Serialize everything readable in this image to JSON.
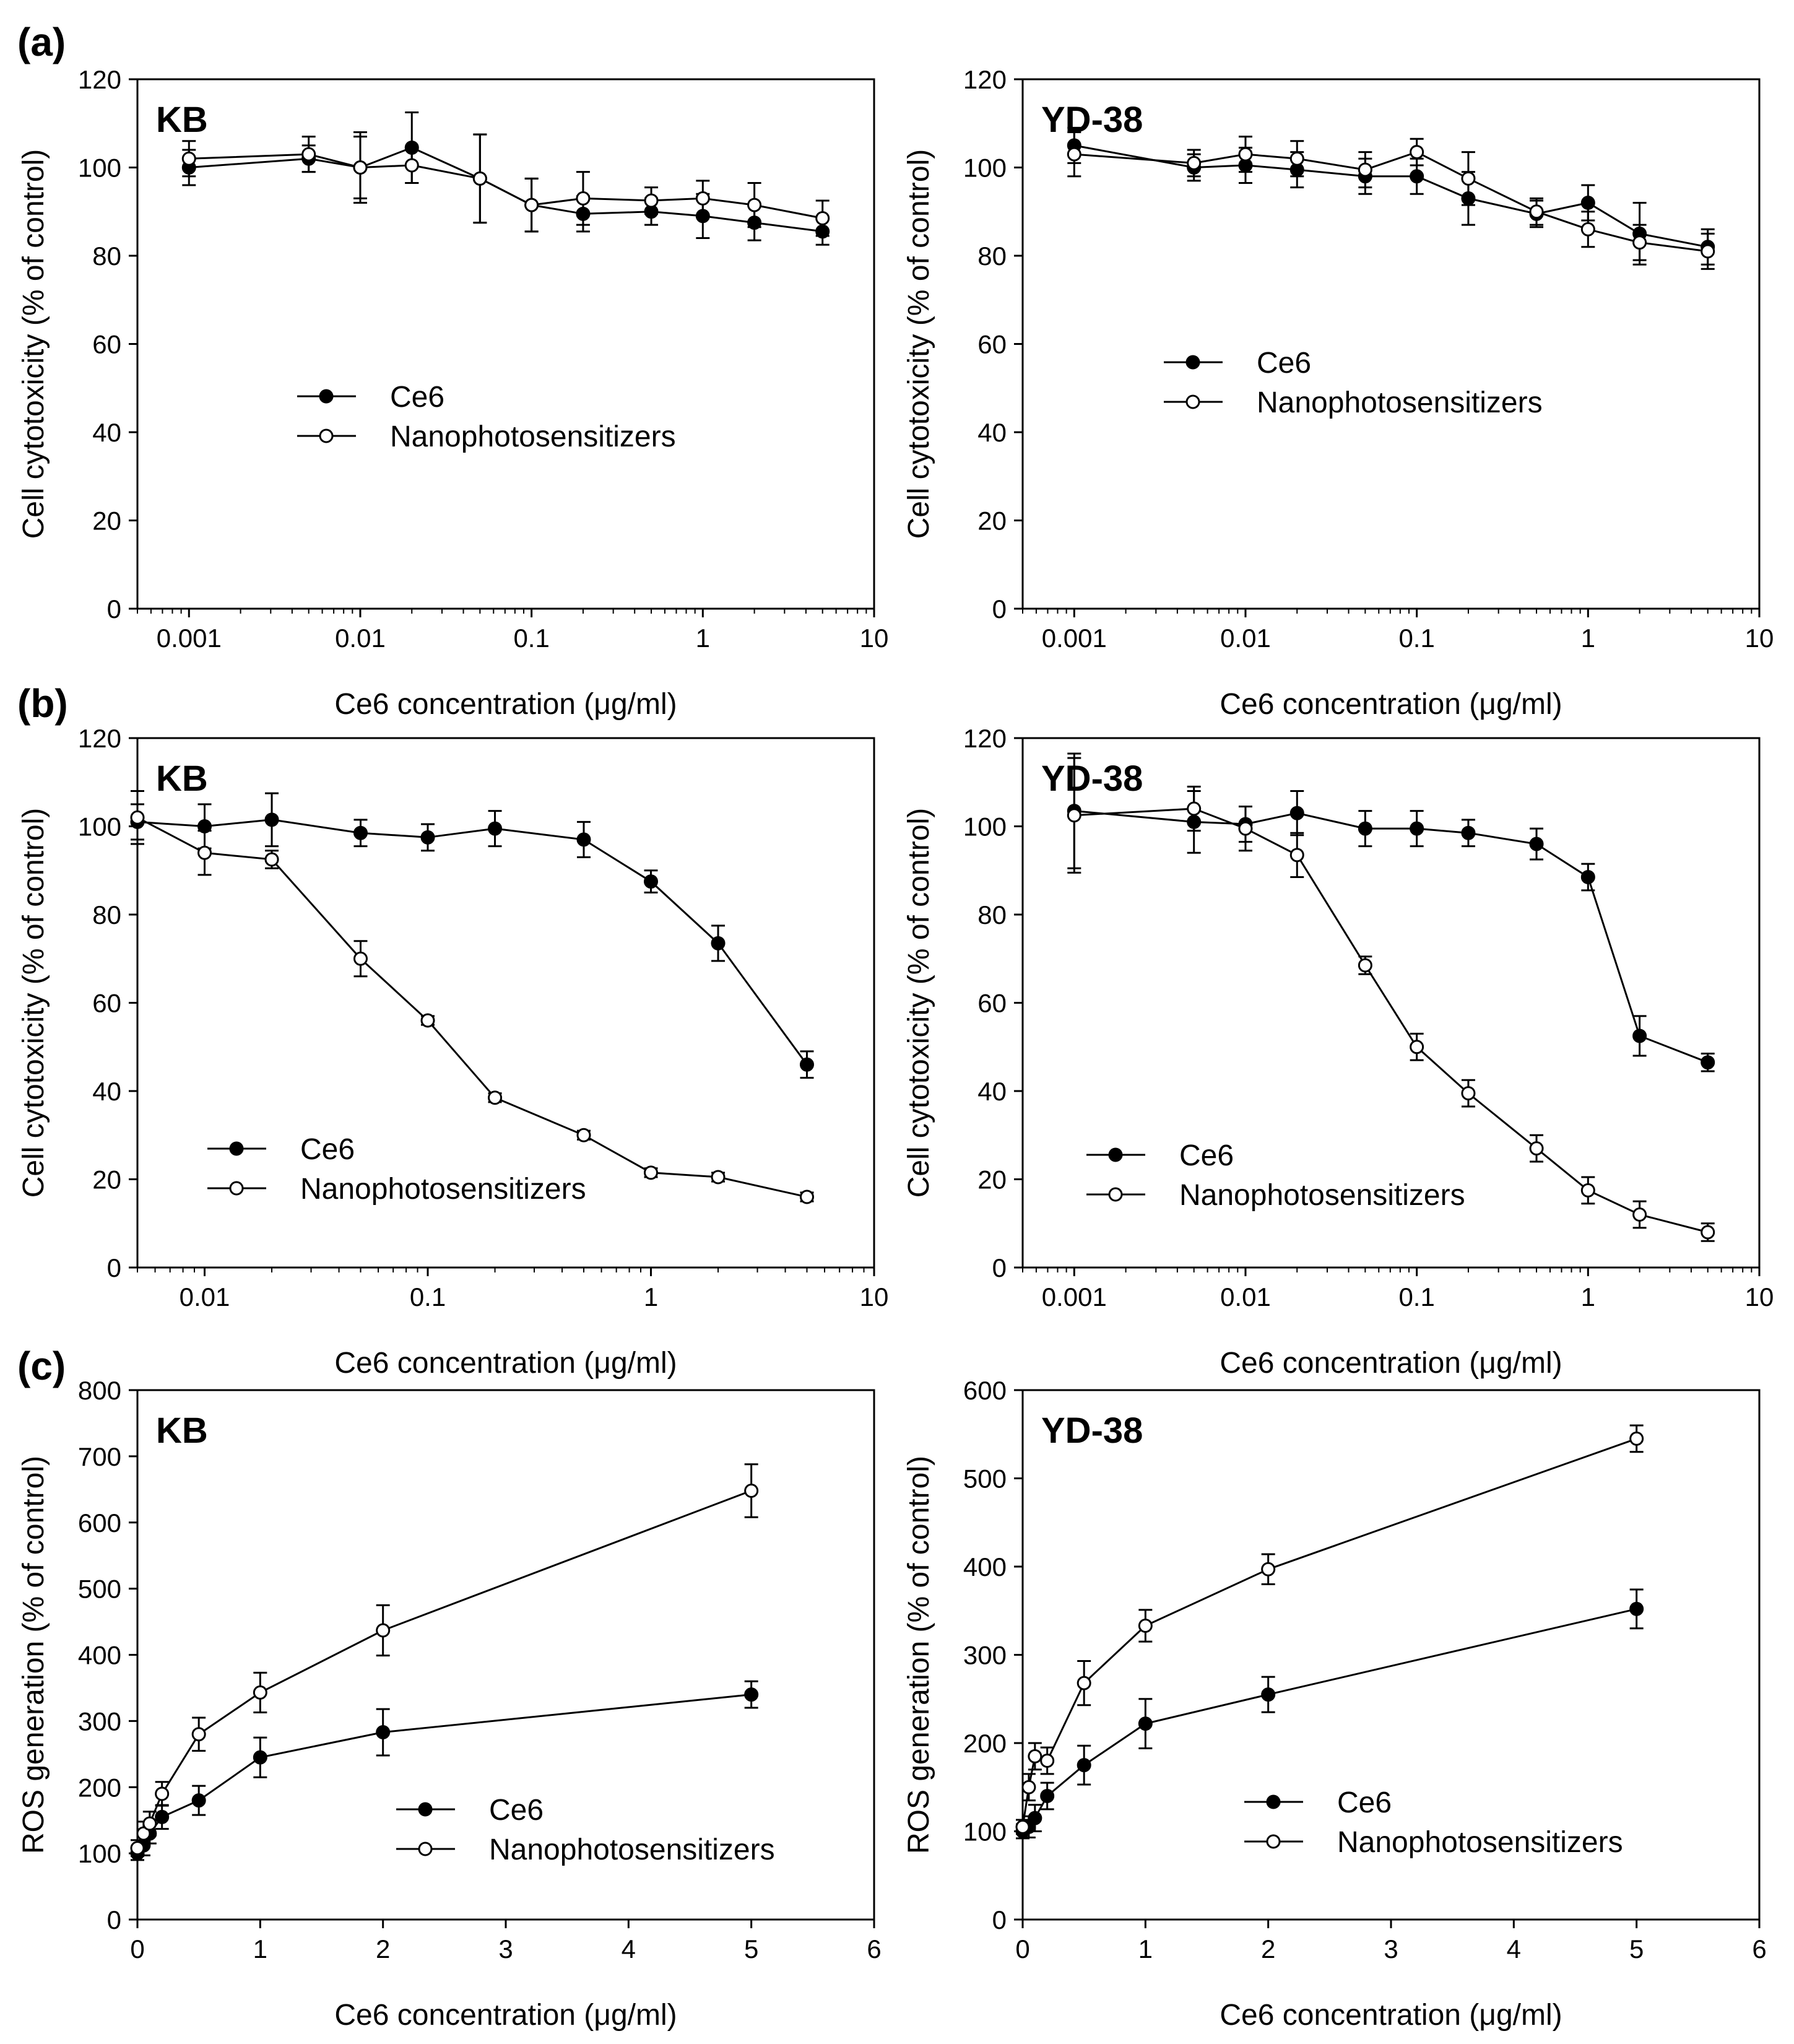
{
  "figure": {
    "panel_labels": [
      "(a)",
      "(b)",
      "(c)"
    ]
  },
  "colors": {
    "line": "#000000",
    "open_fill": "#ffffff",
    "background": "#ffffff"
  },
  "chart_data": [
    {
      "id": "a-kb",
      "panel": "(a)",
      "type": "line",
      "title": "KB",
      "xscale": "log",
      "xlim": [
        0.0005,
        10
      ],
      "ylim": [
        0,
        120
      ],
      "xticks": [
        0.001,
        0.01,
        0.1,
        1,
        10
      ],
      "xtick_labels": [
        "0.001",
        "0.01",
        "0.1",
        "1",
        "10"
      ],
      "yticks": [
        0,
        20,
        40,
        60,
        80,
        100,
        120
      ],
      "xlabel": "Ce6 concentration (μg/ml)",
      "ylabel": "Cell cytotoxicity (% of control)",
      "legend": "center-left",
      "series": [
        {
          "name": "Ce6",
          "marker": "filled",
          "x": [
            0.001,
            0.005,
            0.01,
            0.02,
            0.05,
            0.1,
            0.2,
            0.5,
            1,
            2,
            5
          ],
          "y": [
            100,
            102,
            100,
            104.5,
            97.5,
            91.5,
            89.5,
            90,
            89,
            87.5,
            85.5
          ],
          "err": [
            4,
            3,
            7,
            8,
            10,
            6,
            4,
            3,
            5,
            4,
            3
          ]
        },
        {
          "name": "Nanophotosensitizers",
          "marker": "open",
          "x": [
            0.001,
            0.005,
            0.01,
            0.02,
            0.05,
            0.1,
            0.2,
            0.5,
            1,
            2,
            5
          ],
          "y": [
            102,
            103,
            100,
            100.5,
            97.5,
            91.5,
            93,
            92.5,
            93,
            91.5,
            88.5
          ],
          "err": [
            4,
            4,
            8,
            4,
            10,
            6,
            6,
            3,
            4,
            5,
            4
          ]
        }
      ]
    },
    {
      "id": "a-yd38",
      "panel": "(a)",
      "type": "line",
      "title": "YD-38",
      "xscale": "log",
      "xlim": [
        0.0005,
        10
      ],
      "ylim": [
        0,
        120
      ],
      "xticks": [
        0.001,
        0.01,
        0.1,
        1,
        10
      ],
      "xtick_labels": [
        "0.001",
        "0.01",
        "0.1",
        "1",
        "10"
      ],
      "yticks": [
        0,
        20,
        40,
        60,
        80,
        100,
        120
      ],
      "xlabel": "Ce6 concentration (μg/ml)",
      "ylabel": "Cell cytotoxicity (% of control)",
      "legend": "center",
      "series": [
        {
          "name": "Ce6",
          "marker": "filled",
          "x": [
            0.001,
            0.005,
            0.01,
            0.02,
            0.05,
            0.1,
            0.2,
            0.5,
            1,
            2,
            5
          ],
          "y": [
            105,
            100,
            100.5,
            99.5,
            98,
            98,
            93,
            89.5,
            92,
            85,
            82
          ],
          "err": [
            4,
            3,
            4,
            4,
            4,
            4,
            6,
            3,
            4,
            7,
            4
          ]
        },
        {
          "name": "Nanophotosensitizers",
          "marker": "open",
          "x": [
            0.001,
            0.005,
            0.01,
            0.02,
            0.05,
            0.1,
            0.2,
            0.5,
            1,
            2,
            5
          ],
          "y": [
            103,
            101,
            103,
            102,
            99.5,
            103.5,
            97.5,
            90,
            86,
            83,
            81
          ],
          "err": [
            5,
            3,
            4,
            4,
            4,
            3,
            6,
            3,
            4,
            4,
            4
          ]
        }
      ]
    },
    {
      "id": "b-kb",
      "panel": "(b)",
      "type": "line",
      "title": "KB",
      "xscale": "log",
      "xlim": [
        0.005,
        10
      ],
      "ylim": [
        0,
        120
      ],
      "xticks": [
        0.01,
        0.1,
        1,
        10
      ],
      "xtick_labels": [
        "0.01",
        "0.1",
        "1",
        "10"
      ],
      "yticks": [
        0,
        20,
        40,
        60,
        80,
        100,
        120
      ],
      "xlabel": "Ce6 concentration (μg/ml)",
      "ylabel": "Cell cytotoxicity (% of control)",
      "legend": "bottom-left",
      "series": [
        {
          "name": "Ce6",
          "marker": "filled",
          "x": [
            0.005,
            0.01,
            0.02,
            0.05,
            0.1,
            0.2,
            0.5,
            1,
            2,
            5
          ],
          "y": [
            101,
            100,
            101.5,
            98.5,
            97.5,
            99.5,
            97,
            87.5,
            73.5,
            46
          ],
          "err": [
            4,
            5,
            6,
            3,
            3,
            4,
            4,
            2.5,
            4,
            3
          ]
        },
        {
          "name": "Nanophotosensitizers",
          "marker": "open",
          "x": [
            0.005,
            0.01,
            0.02,
            0.05,
            0.1,
            0.2,
            0.5,
            1,
            2,
            5
          ],
          "y": [
            102,
            94,
            92.5,
            70,
            56,
            38.5,
            30,
            21.5,
            20.5,
            16
          ],
          "err": [
            6,
            5,
            2,
            4,
            1,
            1,
            1,
            1,
            1,
            1
          ]
        }
      ]
    },
    {
      "id": "b-yd38",
      "panel": "(b)",
      "type": "line",
      "title": "YD-38",
      "xscale": "log",
      "xlim": [
        0.0005,
        10
      ],
      "ylim": [
        0,
        120
      ],
      "xticks": [
        0.001,
        0.01,
        0.1,
        1,
        10
      ],
      "xtick_labels": [
        "0.001",
        "0.01",
        "0.1",
        "1",
        "10"
      ],
      "yticks": [
        0,
        20,
        40,
        60,
        80,
        100,
        120
      ],
      "xlabel": "Ce6 concentration (μg/ml)",
      "ylabel": "Cell cytotoxicity (% of control)",
      "legend": "bottom-left",
      "series": [
        {
          "name": "Ce6",
          "marker": "filled",
          "x": [
            0.001,
            0.005,
            0.01,
            0.02,
            0.05,
            0.1,
            0.2,
            0.5,
            1,
            2,
            5
          ],
          "y": [
            103.5,
            101,
            100.5,
            103,
            99.5,
            99.5,
            98.5,
            96,
            88.5,
            52.5,
            46.5
          ],
          "err": [
            13,
            7,
            4,
            5,
            4,
            4,
            3,
            3.5,
            3,
            4.5,
            2
          ]
        },
        {
          "name": "Nanophotosensitizers",
          "marker": "open",
          "x": [
            0.001,
            0.005,
            0.01,
            0.02,
            0.05,
            0.1,
            0.2,
            0.5,
            1,
            2,
            5
          ],
          "y": [
            102.5,
            104,
            99.5,
            93.5,
            68.5,
            50,
            39.5,
            27,
            17.5,
            12,
            8
          ],
          "err": [
            13,
            5,
            5,
            5,
            2,
            3,
            3,
            3,
            3,
            3,
            2
          ]
        }
      ]
    },
    {
      "id": "c-kb",
      "panel": "(c)",
      "type": "line",
      "title": "KB",
      "xscale": "linear",
      "xlim": [
        0,
        6
      ],
      "ylim": [
        0,
        800
      ],
      "xticks": [
        0,
        1,
        2,
        3,
        4,
        5,
        6
      ],
      "xtick_labels": [
        "0",
        "1",
        "2",
        "3",
        "4",
        "5",
        "6"
      ],
      "yticks": [
        0,
        100,
        200,
        300,
        400,
        500,
        600,
        700,
        800
      ],
      "xlabel": "Ce6 concentration (μg/ml)",
      "ylabel": "ROS generation (% of control)",
      "legend": "bottom-right",
      "series": [
        {
          "name": "Ce6",
          "marker": "filled",
          "x": [
            0,
            0.05,
            0.1,
            0.2,
            0.5,
            1,
            2,
            5
          ],
          "y": [
            100,
            112,
            130,
            155,
            180,
            245,
            283,
            340
          ],
          "err": [
            10,
            15,
            15,
            18,
            22,
            30,
            35,
            20
          ]
        },
        {
          "name": "Nanophotosensitizers",
          "marker": "open",
          "x": [
            0,
            0.05,
            0.1,
            0.2,
            0.5,
            1,
            2,
            5
          ],
          "y": [
            108,
            130,
            145,
            190,
            280,
            343,
            437,
            648
          ],
          "err": [
            12,
            18,
            18,
            18,
            25,
            30,
            38,
            40
          ]
        }
      ]
    },
    {
      "id": "c-yd38",
      "panel": "(c)",
      "type": "line",
      "title": "YD-38",
      "xscale": "linear",
      "xlim": [
        0,
        6
      ],
      "ylim": [
        0,
        600
      ],
      "xticks": [
        0,
        1,
        2,
        3,
        4,
        5,
        6
      ],
      "xtick_labels": [
        "0",
        "1",
        "2",
        "3",
        "4",
        "5",
        "6"
      ],
      "yticks": [
        0,
        100,
        200,
        300,
        400,
        500,
        600
      ],
      "xlabel": "Ce6 concentration (μg/ml)",
      "ylabel": "ROS generation (% of control)",
      "legend": "bottom-right",
      "series": [
        {
          "name": "Ce6",
          "marker": "filled",
          "x": [
            0,
            0.05,
            0.1,
            0.2,
            0.5,
            1,
            2,
            5
          ],
          "y": [
            100,
            105,
            115,
            140,
            175,
            222,
            255,
            352
          ],
          "err": [
            8,
            12,
            15,
            15,
            22,
            28,
            20,
            22
          ]
        },
        {
          "name": "Nanophotosensitizers",
          "marker": "open",
          "x": [
            0,
            0.05,
            0.1,
            0.2,
            0.5,
            1,
            2,
            5
          ],
          "y": [
            105,
            150,
            185,
            180,
            268,
            333,
            397,
            545
          ],
          "err": [
            8,
            15,
            15,
            15,
            25,
            18,
            17,
            15
          ]
        }
      ]
    }
  ]
}
